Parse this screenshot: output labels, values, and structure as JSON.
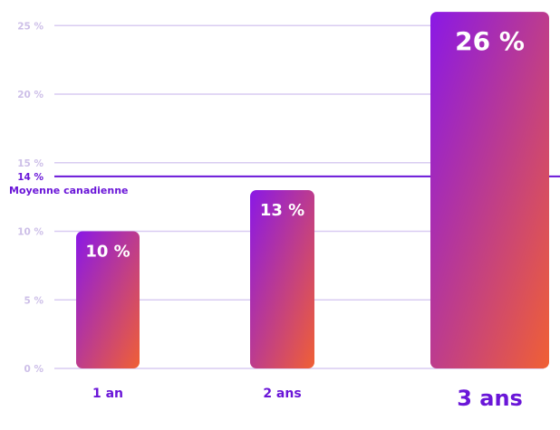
{
  "chart_data": {
    "type": "bar",
    "categories": [
      "1 an",
      "2 ans",
      "3 ans"
    ],
    "values": [
      10,
      13,
      26
    ],
    "data_labels": [
      "10 %",
      "13 %",
      "26 %"
    ],
    "title": "",
    "xlabel": "",
    "ylabel": "",
    "ylim": [
      0,
      26
    ],
    "yticks": [
      0,
      5,
      10,
      15,
      20,
      25
    ],
    "ytick_labels": [
      "0 %",
      "5 %",
      "10 %",
      "15 %",
      "20 %",
      "25 %"
    ],
    "grid": true,
    "reference_line": {
      "value": 14,
      "value_label": "14 %",
      "label": "Moyenne canadienne"
    },
    "colors": {
      "bar_gradient_start": "#8a18e6",
      "bar_gradient_end": "#f06034",
      "gridline": "#d9ccf2",
      "reference_line": "#6a16d8",
      "tick_text": "#cdbfe8",
      "category_text": "#6a16d8"
    }
  }
}
